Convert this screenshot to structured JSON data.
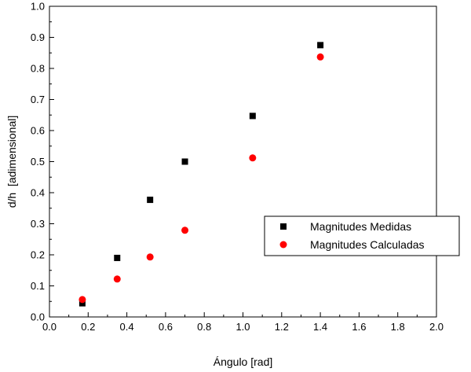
{
  "chart_data": {
    "type": "scatter",
    "xlabel": "Ángulo [rad]",
    "ylabel": "d/h  [adimensional]",
    "xlim": [
      0,
      2.0
    ],
    "ylim": [
      0,
      1.0
    ],
    "xticks": [
      "0.0",
      "0.2",
      "0.4",
      "0.6",
      "0.8",
      "1.0",
      "1.2",
      "1.4",
      "1.6",
      "1.8",
      "2.0"
    ],
    "yticks": [
      "0.0",
      "0.1",
      "0.2",
      "0.3",
      "0.4",
      "0.5",
      "0.6",
      "0.7",
      "0.8",
      "0.9",
      "1.0"
    ],
    "grid": false,
    "legend_position": "right",
    "series": [
      {
        "name": "Magnitudes Medidas",
        "marker": "square",
        "color": "#000000",
        "x": [
          0.17,
          0.35,
          0.52,
          0.7,
          1.05,
          1.4
        ],
        "y": [
          0.044,
          0.19,
          0.377,
          0.5,
          0.647,
          0.875
        ]
      },
      {
        "name": "Magnitudes Calculadas",
        "marker": "circle",
        "color": "#ff0000",
        "x": [
          0.17,
          0.35,
          0.52,
          0.7,
          1.05,
          1.4
        ],
        "y": [
          0.056,
          0.122,
          0.193,
          0.279,
          0.512,
          0.837
        ]
      }
    ]
  }
}
